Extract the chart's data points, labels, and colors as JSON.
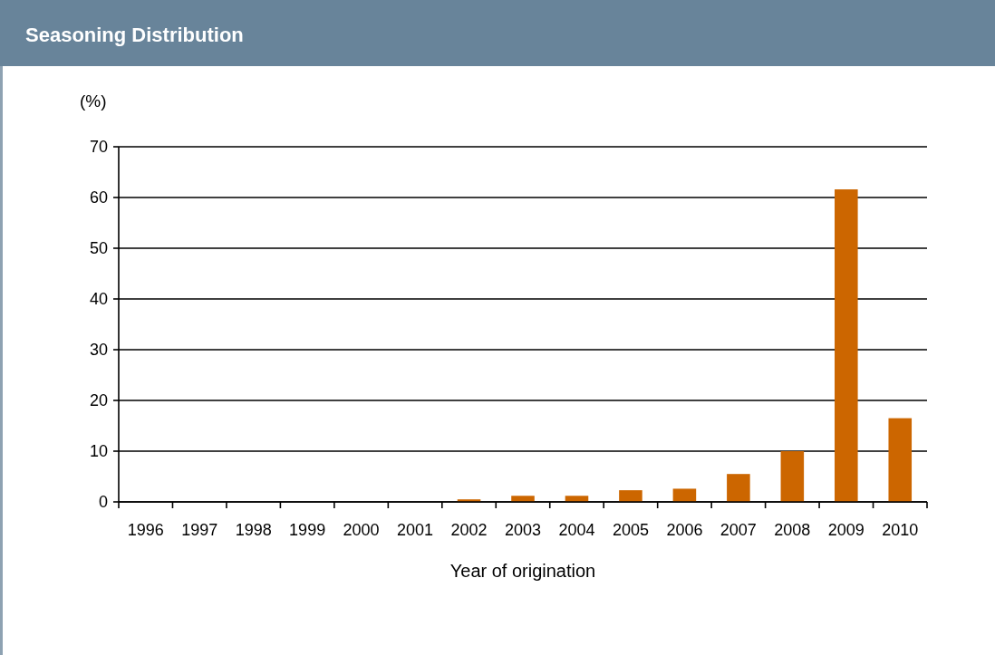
{
  "chart_data": {
    "type": "bar",
    "title": "Seasoning Distribution",
    "xlabel": "Year of origination",
    "ylabel": "(%)",
    "categories": [
      "1996",
      "1997",
      "1998",
      "1999",
      "2000",
      "2001",
      "2002",
      "2003",
      "2004",
      "2005",
      "2006",
      "2007",
      "2008",
      "2009",
      "2010"
    ],
    "values": [
      0,
      0,
      0,
      0,
      0,
      0,
      0.5,
      1.2,
      1.2,
      2.3,
      2.6,
      5.5,
      10,
      61.6,
      16.5
    ],
    "color": "#cc6600",
    "ylim": [
      0,
      70
    ],
    "yticks": [
      0,
      10,
      20,
      30,
      40,
      50,
      60,
      70
    ],
    "grid": "y"
  }
}
